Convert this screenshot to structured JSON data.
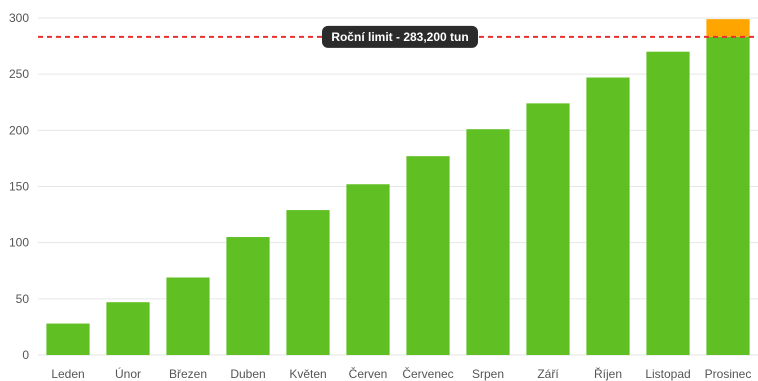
{
  "chart_data": {
    "type": "bar",
    "categories": [
      "Leden",
      "Únor",
      "Březen",
      "Duben",
      "Květen",
      "Červen",
      "Červenec",
      "Srpen",
      "Září",
      "Říjen",
      "Listopad",
      "Prosinec"
    ],
    "values": [
      28,
      47,
      69,
      105,
      129,
      152,
      177,
      201,
      224,
      247,
      270,
      299
    ],
    "ylim": [
      0,
      300
    ],
    "yticks": [
      0,
      50,
      100,
      150,
      200,
      250,
      300
    ],
    "grid": true,
    "bar_color": "#5fbf23",
    "over_limit_color": "#ffa500",
    "limit": {
      "value": 283.2,
      "label": "Roční limit - 283,200 tun",
      "line_color": "#e8312f",
      "badge_color": "#2b2b2b"
    },
    "title": "",
    "xlabel": "",
    "ylabel": ""
  }
}
